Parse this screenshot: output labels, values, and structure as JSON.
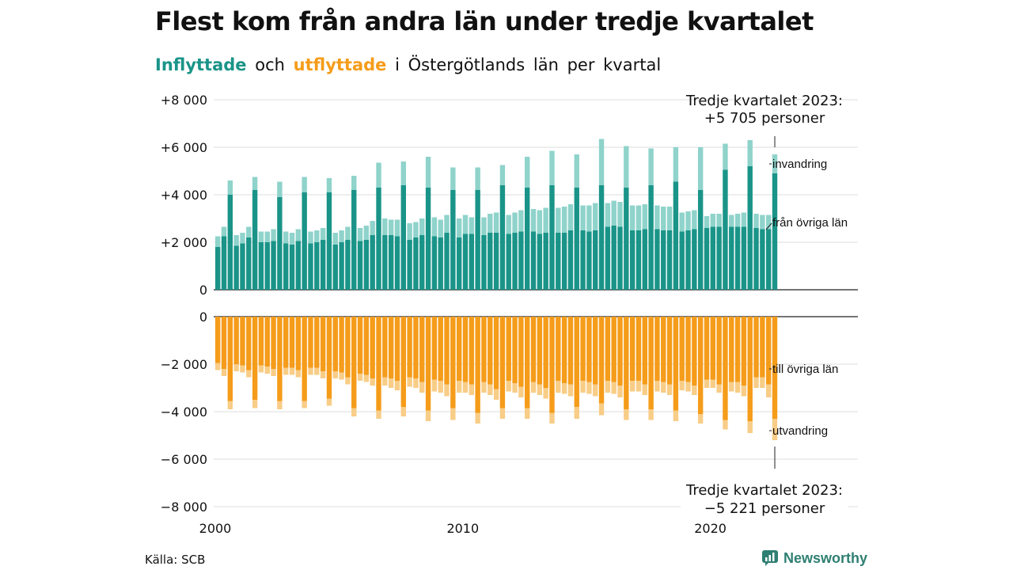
{
  "title": "Flest kom från andra län under tredje kvartalet",
  "subtitle": {
    "part1": "Inflyttade",
    "part2": "och",
    "part3": "utflyttade",
    "part4": "i Östergötlands  län  per  kvartal"
  },
  "source": "Källa: SCB",
  "logo_text": "Newsworthy",
  "colors": {
    "in_domestic": "#1a9488",
    "in_immigration": "#8fd3cb",
    "out_domestic": "#f59c1a",
    "out_emigration": "#f8cd87"
  },
  "chart_data": {
    "type": "bar",
    "subtype": "stacked, diverging (two panels)",
    "title": "Flest kom från andra län under tredje kvartalet",
    "x_ticks": [
      "2000",
      "2010",
      "2020"
    ],
    "y_ticks_top": [
      "+8 000",
      "+6 000",
      "+4 000",
      "+2 000",
      "0"
    ],
    "y_ticks_bottom": [
      "0",
      "−2 000",
      "−4 000",
      "−6 000",
      "−8 000"
    ],
    "ylim_top": [
      0,
      8000
    ],
    "ylim_bottom": [
      -8000,
      0
    ],
    "grid": true,
    "first_quarter": "2000 Q1",
    "last_quarter": "2023 Q3",
    "series_labels": {
      "in_immigration": "invandring",
      "in_domestic": "från övriga län",
      "out_domestic": "till övriga län",
      "out_emigration": "utvandring"
    },
    "annotations": {
      "top_line1": "Tredje kvartalet 2023:",
      "top_line2": "+5 705 personer",
      "bottom_line1": "Tredje kvartalet 2023:",
      "bottom_line2": "−5 221 personer"
    },
    "series": [
      {
        "key": "in_domestic",
        "values": [
          1800,
          2250,
          4000,
          1850,
          1950,
          2200,
          4200,
          2000,
          2000,
          2050,
          3900,
          1950,
          1900,
          2050,
          4100,
          1950,
          2000,
          2100,
          4100,
          1900,
          2000,
          2100,
          4200,
          2050,
          2100,
          2300,
          4300,
          2300,
          2300,
          2250,
          4400,
          2100,
          2200,
          2300,
          4300,
          2250,
          2200,
          2400,
          4200,
          2200,
          2350,
          2350,
          4200,
          2300,
          2400,
          2400,
          4400,
          2350,
          2400,
          2450,
          4300,
          2450,
          2350,
          2400,
          4400,
          2400,
          2400,
          2500,
          4300,
          2500,
          2450,
          2500,
          4400,
          2650,
          2700,
          2650,
          4300,
          2500,
          2500,
          2550,
          4400,
          2550,
          2500,
          2500,
          4550,
          2450,
          2500,
          2550,
          4200,
          2600,
          2650,
          2650,
          5050,
          2650,
          2650,
          2650,
          5200,
          2600,
          2550,
          2550,
          4900
        ]
      },
      {
        "key": "in_immigration",
        "values": [
          450,
          400,
          600,
          450,
          450,
          450,
          550,
          450,
          450,
          500,
          650,
          500,
          500,
          500,
          650,
          500,
          500,
          500,
          600,
          500,
          500,
          550,
          600,
          550,
          600,
          600,
          1050,
          700,
          650,
          700,
          1000,
          700,
          650,
          700,
          1300,
          800,
          750,
          750,
          950,
          800,
          800,
          700,
          950,
          750,
          800,
          850,
          850,
          800,
          850,
          900,
          1300,
          950,
          1000,
          1050,
          1450,
          1050,
          1100,
          1100,
          1400,
          1050,
          1100,
          1150,
          1950,
          1000,
          1050,
          1050,
          1750,
          1050,
          1050,
          1050,
          1550,
          1000,
          1000,
          1000,
          1450,
          800,
          800,
          800,
          1800,
          500,
          550,
          550,
          1100,
          500,
          550,
          600,
          1100,
          600,
          600,
          600,
          800
        ]
      },
      {
        "key": "out_domestic",
        "values": [
          -1950,
          -2200,
          -3550,
          -2000,
          -2050,
          -2250,
          -3500,
          -2050,
          -2100,
          -2200,
          -3550,
          -2150,
          -2150,
          -2250,
          -3550,
          -2150,
          -2150,
          -2300,
          -3450,
          -2300,
          -2350,
          -2550,
          -3850,
          -2400,
          -2450,
          -2600,
          -3950,
          -2550,
          -2600,
          -2700,
          -3800,
          -2550,
          -2600,
          -2750,
          -3950,
          -2650,
          -2700,
          -2850,
          -3850,
          -2700,
          -2750,
          -2850,
          -4050,
          -2750,
          -2850,
          -3050,
          -3850,
          -2700,
          -2800,
          -2950,
          -3850,
          -2750,
          -2850,
          -3000,
          -4050,
          -2700,
          -2800,
          -2850,
          -3800,
          -2700,
          -2750,
          -2850,
          -3650,
          -2700,
          -2750,
          -2900,
          -3900,
          -2700,
          -2700,
          -2850,
          -3900,
          -2700,
          -2750,
          -2850,
          -3950,
          -2700,
          -2750,
          -2900,
          -4100,
          -2650,
          -2650,
          -2850,
          -4350,
          -2750,
          -2750,
          -2900,
          -4400,
          -2550,
          -2550,
          -2850,
          -4300
        ]
      },
      {
        "key": "out_emigration",
        "values": [
          -300,
          -300,
          -350,
          -300,
          -300,
          -300,
          -350,
          -300,
          -300,
          -300,
          -350,
          -300,
          -300,
          -300,
          -300,
          -300,
          -300,
          -300,
          -300,
          -300,
          -300,
          -300,
          -350,
          -300,
          -300,
          -300,
          -350,
          -350,
          -400,
          -400,
          -400,
          -400,
          -400,
          -450,
          -450,
          -500,
          -500,
          -500,
          -500,
          -500,
          -450,
          -450,
          -450,
          -450,
          -450,
          -450,
          -450,
          -450,
          -400,
          -450,
          -450,
          -450,
          -450,
          -450,
          -450,
          -500,
          -450,
          -500,
          -500,
          -500,
          -500,
          -500,
          -500,
          -500,
          -500,
          -500,
          -450,
          -450,
          -450,
          -450,
          -450,
          -450,
          -450,
          -450,
          -450,
          -400,
          -400,
          -400,
          -400,
          -350,
          -350,
          -350,
          -400,
          -400,
          -450,
          -450,
          -500,
          -450,
          -450,
          -550,
          -900
        ]
      }
    ]
  }
}
